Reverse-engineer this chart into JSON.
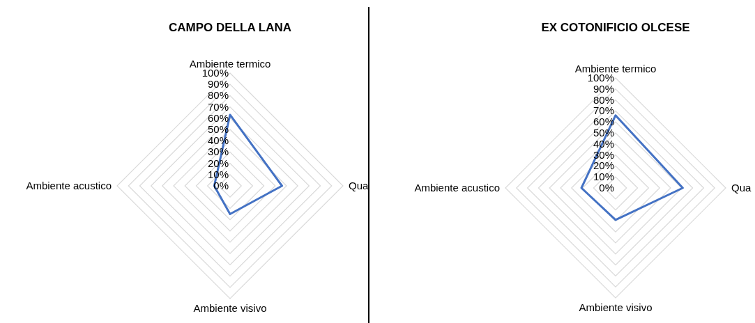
{
  "chart_data": [
    {
      "type": "radar",
      "title": "CAMPO DELLA LANA",
      "categories": [
        "Ambiente termico",
        "Qua",
        "Ambiente visivo",
        "Ambiente acustico"
      ],
      "series": [
        {
          "color": "#4472c4",
          "values": [
            63,
            46,
            25,
            14
          ]
        }
      ],
      "ylim": [
        0,
        100
      ],
      "yticks": [
        {
          "value": 0,
          "label": "0%"
        },
        {
          "value": 10,
          "label": "10%"
        },
        {
          "value": 20,
          "label": "20%"
        },
        {
          "value": 30,
          "label": "30%"
        },
        {
          "value": 40,
          "label": "40%"
        },
        {
          "value": 50,
          "label": "50%"
        },
        {
          "value": 60,
          "label": "60%"
        },
        {
          "value": 70,
          "label": "70%"
        },
        {
          "value": 80,
          "label": "80%"
        },
        {
          "value": 90,
          "label": "90%"
        },
        {
          "value": 100,
          "label": "100%"
        }
      ],
      "grid": true
    },
    {
      "type": "radar",
      "title": "EX COTONIFICIO OLCESE",
      "categories": [
        "Ambiente termico",
        "Qua",
        "Ambiente visivo",
        "Ambiente acustico"
      ],
      "series": [
        {
          "color": "#4472c4",
          "values": [
            66,
            61,
            29,
            31
          ]
        }
      ],
      "ylim": [
        0,
        100
      ],
      "yticks": [
        {
          "value": 0,
          "label": "0%"
        },
        {
          "value": 10,
          "label": "10%"
        },
        {
          "value": 20,
          "label": "20%"
        },
        {
          "value": 30,
          "label": "30%"
        },
        {
          "value": 40,
          "label": "40%"
        },
        {
          "value": 50,
          "label": "50%"
        },
        {
          "value": 60,
          "label": "60%"
        },
        {
          "value": 70,
          "label": "70%"
        },
        {
          "value": 80,
          "label": "80%"
        },
        {
          "value": 90,
          "label": "90%"
        },
        {
          "value": 100,
          "label": "100%"
        }
      ],
      "grid": true
    }
  ]
}
